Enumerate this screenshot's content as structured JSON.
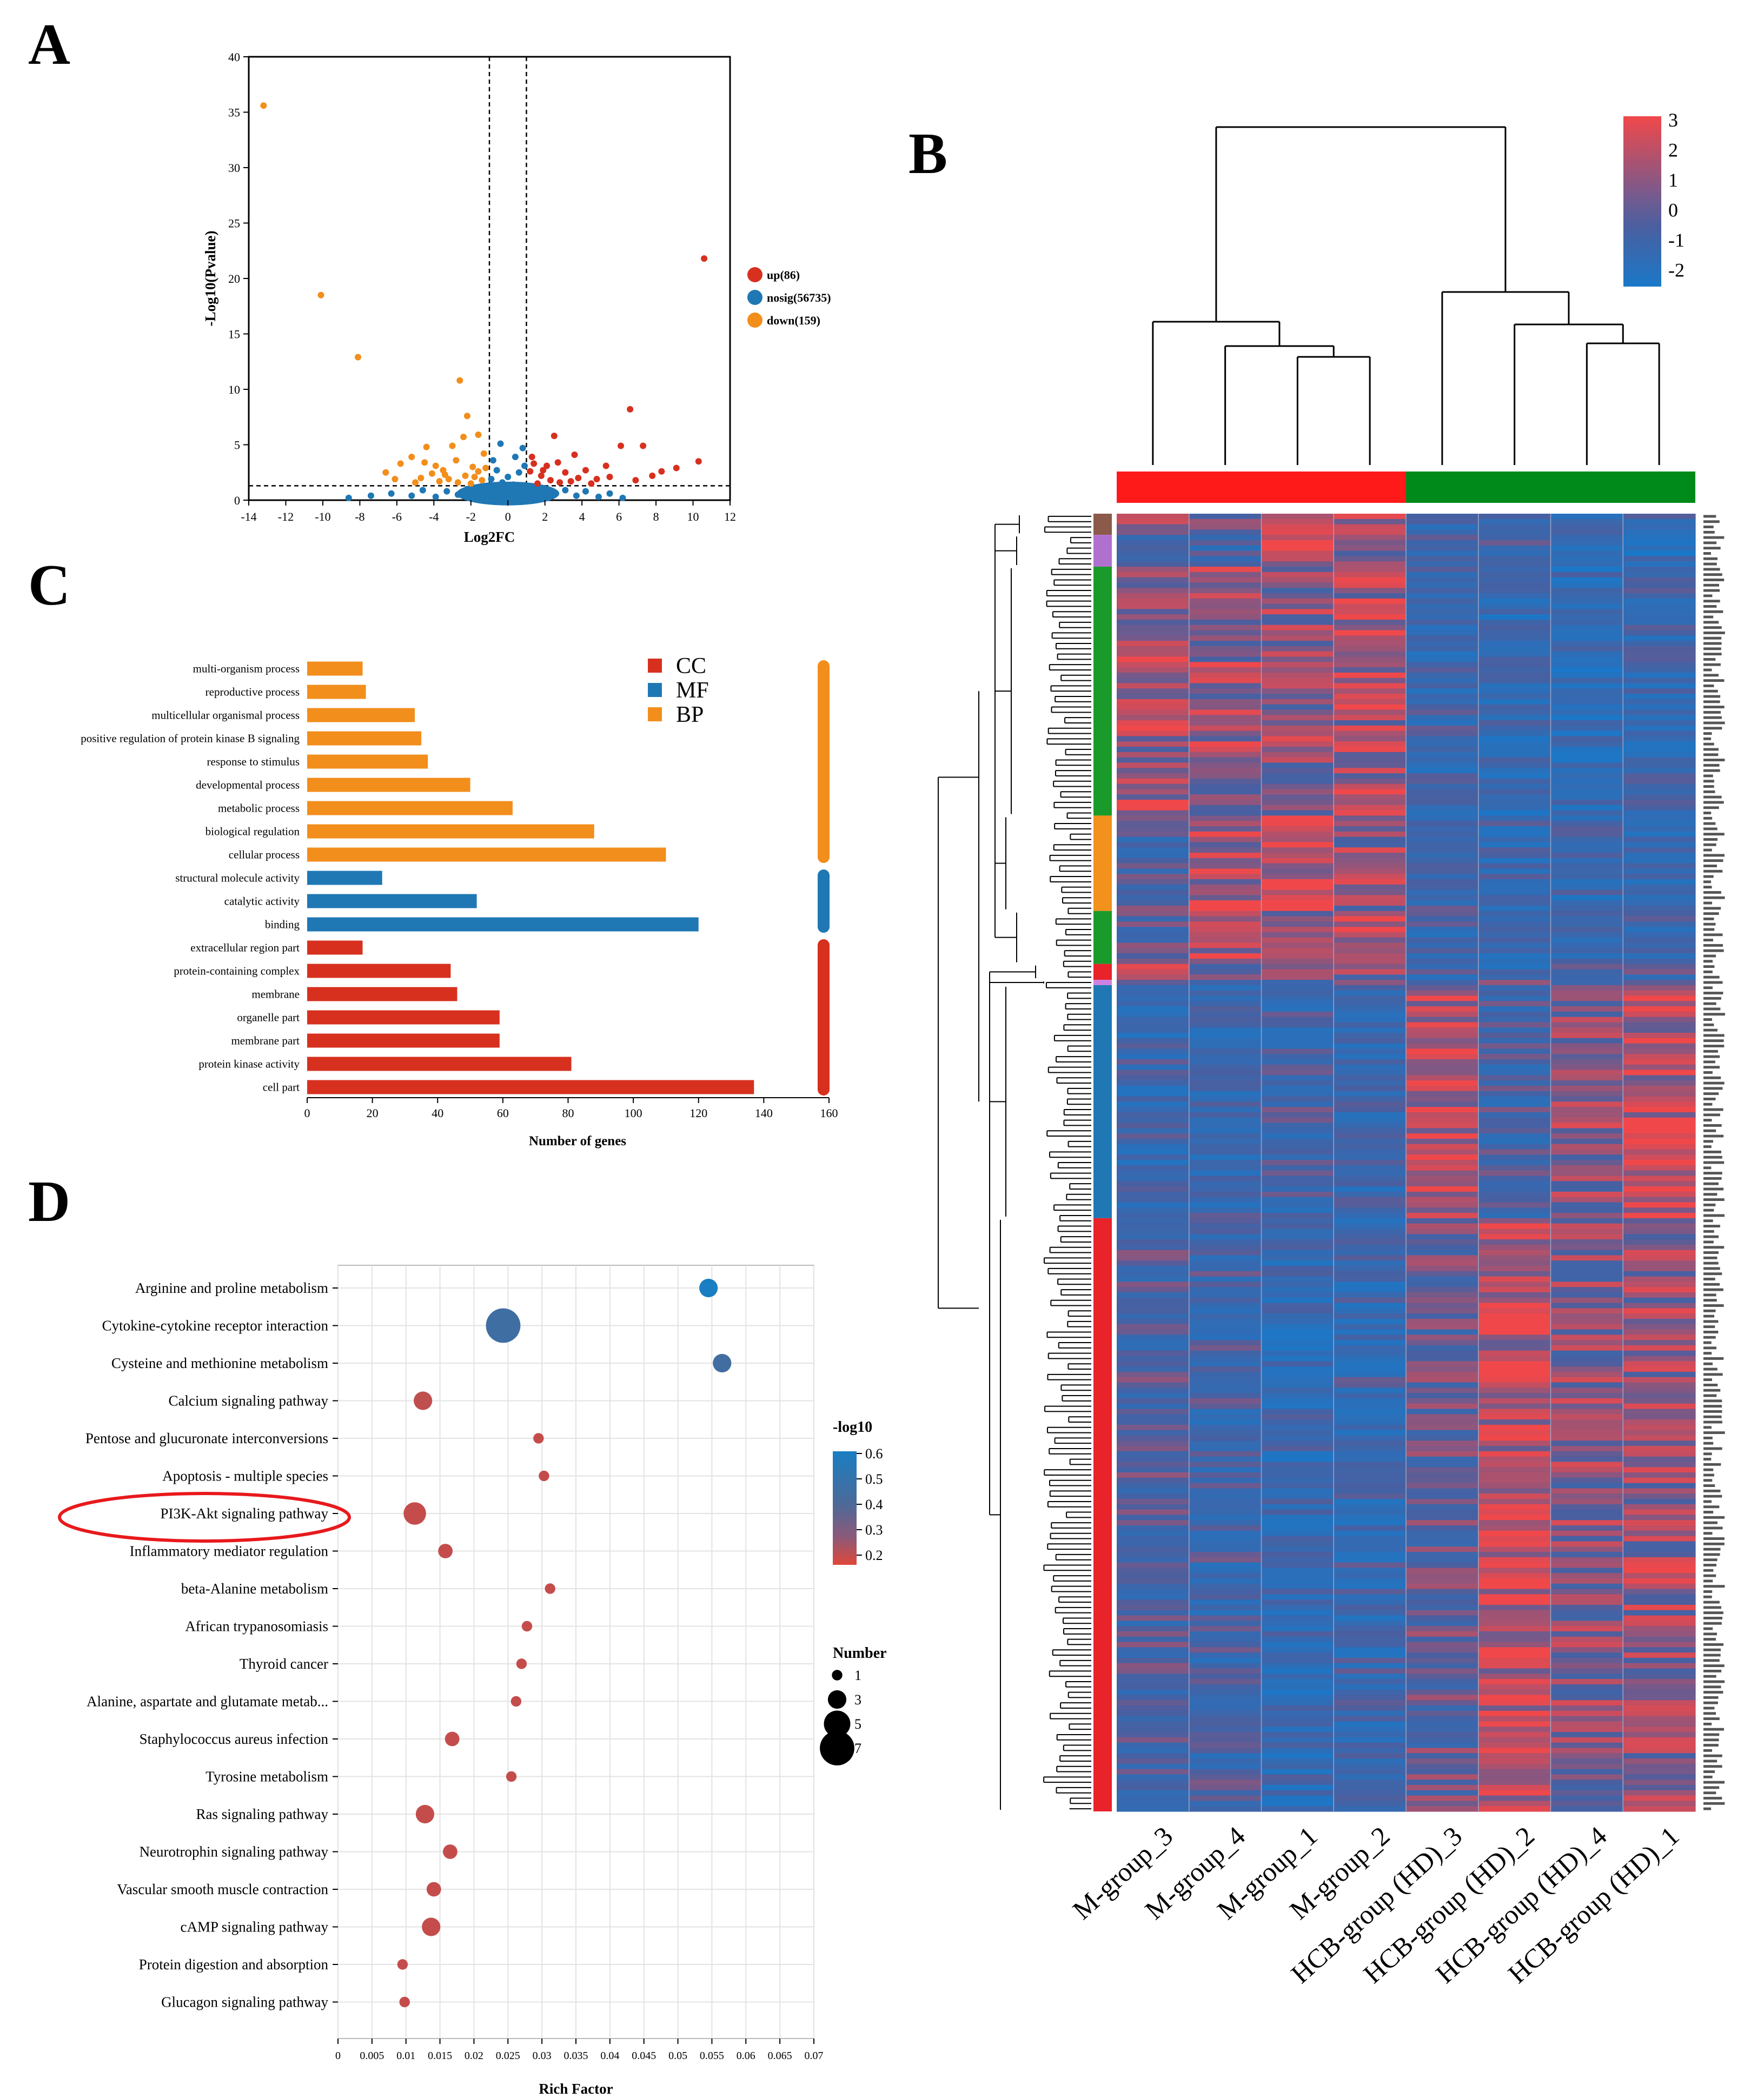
{
  "panels": {
    "A": "A",
    "B": "B",
    "C": "C",
    "D": "D"
  },
  "colors": {
    "up": "#d7301f",
    "nosig": "#1f78b4",
    "down": "#f28e1c",
    "hm_high": "#f0484a",
    "hm_mid": "#4a5fa0",
    "hm_low": "#1a78c8",
    "group1": "#ff1a1a",
    "group2": "#008a1a"
  },
  "chart_data": [
    {
      "type": "scatter",
      "panel": "A",
      "title": "",
      "xlabel": "Log2FC",
      "ylabel": "-Log10(Pvalue)",
      "xlim": [
        -14,
        12
      ],
      "ylim": [
        0,
        40
      ],
      "xticks": [
        -14,
        -12,
        -10,
        -8,
        -6,
        -4,
        -2,
        0,
        2,
        4,
        6,
        8,
        10,
        12
      ],
      "yticks": [
        0,
        5,
        10,
        15,
        20,
        25,
        30,
        35,
        40
      ],
      "thresholds": {
        "x": [
          -1,
          1
        ],
        "y": 1.3
      },
      "legend": [
        "up(86)",
        "nosig(56735)",
        "down(159)"
      ],
      "points": {
        "down": [
          [
            -13.2,
            35.6
          ],
          [
            -10.1,
            18.5
          ],
          [
            -8.1,
            12.9
          ],
          [
            -2.6,
            10.8
          ],
          [
            -2.2,
            7.6
          ],
          [
            -2.4,
            5.7
          ],
          [
            -3.0,
            4.9
          ],
          [
            -1.6,
            5.9
          ],
          [
            -4.4,
            4.8
          ],
          [
            -5.2,
            3.9
          ],
          [
            -5.8,
            3.3
          ],
          [
            -6.6,
            2.5
          ],
          [
            -3.9,
            3.1
          ],
          [
            -2.8,
            3.6
          ],
          [
            -3.5,
            2.7
          ],
          [
            -1.3,
            4.2
          ],
          [
            -1.9,
            3.0
          ],
          [
            -4.7,
            2.0
          ],
          [
            -2.3,
            2.2
          ],
          [
            -1.6,
            2.6
          ],
          [
            -3.2,
            1.9
          ],
          [
            -4.1,
            2.4
          ],
          [
            -1.4,
            1.8
          ],
          [
            -2.7,
            1.6
          ],
          [
            -5.0,
            1.6
          ],
          [
            -1.8,
            2.1
          ],
          [
            -3.7,
            1.7
          ],
          [
            -2.0,
            1.5
          ],
          [
            -1.2,
            2.9
          ],
          [
            -6.1,
            1.9
          ],
          [
            -4.5,
            3.4
          ],
          [
            -3.4,
            2.3
          ]
        ],
        "up": [
          [
            10.6,
            21.8
          ],
          [
            6.6,
            8.2
          ],
          [
            6.1,
            4.9
          ],
          [
            7.3,
            4.9
          ],
          [
            10.3,
            3.5
          ],
          [
            2.5,
            5.8
          ],
          [
            3.6,
            4.1
          ],
          [
            8.3,
            2.6
          ],
          [
            9.1,
            2.9
          ],
          [
            5.3,
            3.1
          ],
          [
            1.3,
            3.9
          ],
          [
            2.1,
            3.1
          ],
          [
            1.8,
            2.2
          ],
          [
            3.1,
            2.5
          ],
          [
            4.2,
            2.7
          ],
          [
            1.2,
            2.6
          ],
          [
            4.8,
            1.9
          ],
          [
            2.8,
            1.6
          ],
          [
            1.6,
            1.5
          ],
          [
            3.8,
            2.0
          ],
          [
            6.9,
            1.8
          ],
          [
            2.3,
            1.8
          ],
          [
            5.5,
            2.1
          ],
          [
            1.4,
            3.3
          ],
          [
            2.7,
            3.4
          ],
          [
            3.4,
            1.7
          ],
          [
            4.5,
            1.5
          ],
          [
            1.9,
            2.7
          ],
          [
            7.8,
            2.2
          ]
        ],
        "nosig": [
          [
            -8.6,
            0.2
          ],
          [
            -6.3,
            0.6
          ],
          [
            -5.2,
            0.4
          ],
          [
            -4.6,
            0.9
          ],
          [
            -3.9,
            0.3
          ],
          [
            -3.3,
            0.8
          ],
          [
            -2.7,
            0.5
          ],
          [
            -2.2,
            1.0
          ],
          [
            -1.7,
            0.4
          ],
          [
            -1.3,
            1.1
          ],
          [
            -0.9,
            1.9
          ],
          [
            -0.6,
            2.7
          ],
          [
            -0.3,
            1.6
          ],
          [
            0.0,
            2.1
          ],
          [
            0.3,
            1.4
          ],
          [
            0.6,
            2.5
          ],
          [
            0.9,
            3.1
          ],
          [
            -0.8,
            3.6
          ],
          [
            0.4,
            3.9
          ],
          [
            1.3,
            0.7
          ],
          [
            1.9,
            1.0
          ],
          [
            2.5,
            0.5
          ],
          [
            3.1,
            0.9
          ],
          [
            3.7,
            0.4
          ],
          [
            4.2,
            0.8
          ],
          [
            4.9,
            0.3
          ],
          [
            5.5,
            0.6
          ],
          [
            6.2,
            0.2
          ],
          [
            -7.4,
            0.4
          ],
          [
            -0.5,
            0.8
          ],
          [
            0.2,
            0.6
          ],
          [
            -0.2,
            1.2
          ],
          [
            0.7,
            1.0
          ],
          [
            -1.0,
            0.6
          ],
          [
            1.1,
            0.3
          ],
          [
            -1.5,
            0.2
          ],
          [
            1.6,
            0.2
          ],
          [
            0.8,
            4.7
          ],
          [
            -0.4,
            5.1
          ]
        ]
      }
    },
    {
      "type": "heatmap",
      "panel": "B",
      "samples": [
        "M-group_3",
        "M-group_4",
        "M-group_1",
        "M-group_2",
        "HCB-group (HD)_3",
        "HCB-group (HD)_2",
        "HCB-group (HD)_4",
        "HCB-group (HD)_1"
      ],
      "groups": [
        {
          "name": "M-group",
          "color": "#ff1a1a",
          "count": 4
        },
        {
          "name": "HCB-group (HD)",
          "color": "#008a1a",
          "count": 4
        }
      ],
      "colorbar": {
        "ticks": [
          3,
          2,
          1,
          0,
          -1,
          -2
        ]
      },
      "n_rows": 245,
      "row_clusters": [
        {
          "color": "#8b5a4a",
          "rows": 4
        },
        {
          "color": "#b070d0",
          "rows": 6
        },
        {
          "color": "#1a9a2a",
          "rows": 47
        },
        {
          "color": "#f2911c",
          "rows": 18
        },
        {
          "color": "#1a9a2a",
          "rows": 10
        },
        {
          "color": "#e8232a",
          "rows": 3
        },
        {
          "color": "#d080e0",
          "rows": 1
        },
        {
          "color": "#1f78b4",
          "rows": 44
        },
        {
          "color": "#e8232a",
          "rows": 112
        }
      ],
      "cluster_values": [
        [
          0.9,
          0.2,
          0.7,
          0.6,
          -0.5,
          -0.4,
          -0.7,
          -0.6
        ],
        [
          -0.2,
          -0.5,
          1.3,
          0.8,
          -0.6,
          -0.3,
          -1.2,
          -0.9
        ],
        [
          0.8,
          0.7,
          0.6,
          0.9,
          -0.6,
          -0.8,
          -0.9,
          -0.7
        ],
        [
          -0.2,
          1.0,
          1.1,
          0.6,
          -0.5,
          -0.6,
          -0.7,
          -0.8
        ],
        [
          -0.1,
          0.9,
          0.3,
          1.2,
          -0.6,
          -0.7,
          -0.5,
          -0.5
        ],
        [
          0.7,
          0.2,
          0.2,
          0.6,
          -0.4,
          -0.6,
          -0.5,
          -0.2
        ],
        [
          0.1,
          0.1,
          0.1,
          0.1,
          0.1,
          0.1,
          0.1,
          0.1
        ],
        [
          -0.6,
          -0.6,
          -0.4,
          -0.5,
          1.1,
          -0.3,
          0.6,
          1.1
        ],
        [
          -0.2,
          -0.4,
          -0.8,
          -0.6,
          0.1,
          1.1,
          0.5,
          0.7
        ]
      ]
    },
    {
      "type": "bar",
      "panel": "C",
      "orientation": "horizontal",
      "xlabel": "Number of genes",
      "xlim": [
        0,
        160
      ],
      "xticks": [
        0,
        20,
        40,
        60,
        80,
        100,
        120,
        140,
        160
      ],
      "legend": [
        {
          "label": "CC",
          "color": "#d7301f"
        },
        {
          "label": "MF",
          "color": "#1f78b4"
        },
        {
          "label": "BP",
          "color": "#f28e1c"
        }
      ],
      "categories": [
        "multi-organism process",
        "reproductive process",
        "multicellular organismal process",
        "positive regulation of protein kinase B signaling",
        "response to stimulus",
        "developmental process",
        "metabolic process",
        "biological regulation",
        "cellular process",
        "structural molecule activity",
        "catalytic activity",
        "binding",
        "extracellular region part",
        "protein-containing complex",
        "membrane",
        "organelle part",
        "membrane part",
        "protein kinase activity",
        "cell part"
      ],
      "values": [
        17,
        18,
        33,
        35,
        37,
        50,
        63,
        88,
        110,
        23,
        52,
        120,
        17,
        44,
        46,
        59,
        59,
        81,
        137
      ],
      "category_groups": [
        "BP",
        "BP",
        "BP",
        "BP",
        "BP",
        "BP",
        "BP",
        "BP",
        "BP",
        "MF",
        "MF",
        "MF",
        "CC",
        "CC",
        "CC",
        "CC",
        "CC",
        "CC",
        "CC"
      ]
    },
    {
      "type": "scatter",
      "panel": "D",
      "subtype": "bubble",
      "xlabel": "Rich Factor",
      "xlim": [
        0,
        0.07
      ],
      "xticks": [
        "0",
        "0.005",
        "0.01",
        "0.015",
        "0.02",
        "0.025",
        "0.03",
        "0.035",
        "0.04",
        "0.045",
        "0.05",
        "0.055",
        "0.06",
        "0.065",
        "0.07"
      ],
      "color_legend": {
        "title": "-log10",
        "ticks": [
          "0.6",
          "0.5",
          "0.4",
          "0.3",
          "0.2"
        ],
        "range": [
          0.15,
          0.6
        ]
      },
      "size_legend": {
        "title": "Number",
        "values": [
          "1",
          "3",
          "5",
          "7"
        ]
      },
      "highlight": "PI3K-Akt signaling pathway",
      "pathways": [
        {
          "name": "Arginine and proline metabolism",
          "rich": 0.0545,
          "number": 3,
          "neglog10": 0.6
        },
        {
          "name": "Cytokine-cytokine receptor interaction",
          "rich": 0.0243,
          "number": 7,
          "neglog10": 0.46
        },
        {
          "name": "Cysteine and methionine metabolism",
          "rich": 0.0565,
          "number": 3,
          "neglog10": 0.45
        },
        {
          "name": "Calcium signaling pathway",
          "rich": 0.0125,
          "number": 3,
          "neglog10": 0.21
        },
        {
          "name": "Pentose and glucuronate interconversions",
          "rich": 0.0295,
          "number": 1,
          "neglog10": 0.2
        },
        {
          "name": "Apoptosis - multiple species",
          "rich": 0.0303,
          "number": 1,
          "neglog10": 0.2
        },
        {
          "name": "PI3K-Akt signaling pathway",
          "rich": 0.0113,
          "number": 4,
          "neglog10": 0.2
        },
        {
          "name": "Inflammatory mediator regulation",
          "rich": 0.0158,
          "number": 2,
          "neglog10": 0.2
        },
        {
          "name": "beta-Alanine metabolism",
          "rich": 0.0312,
          "number": 1,
          "neglog10": 0.2
        },
        {
          "name": "African trypanosomiasis",
          "rich": 0.0278,
          "number": 1,
          "neglog10": 0.2
        },
        {
          "name": "Thyroid cancer",
          "rich": 0.027,
          "number": 1,
          "neglog10": 0.2
        },
        {
          "name": "Alanine, aspartate and glutamate metab...",
          "rich": 0.0262,
          "number": 1,
          "neglog10": 0.2
        },
        {
          "name": "Staphylococcus aureus infection",
          "rich": 0.0168,
          "number": 2,
          "neglog10": 0.2
        },
        {
          "name": "Tyrosine metabolism",
          "rich": 0.0255,
          "number": 1,
          "neglog10": 0.2
        },
        {
          "name": "Ras signaling pathway",
          "rich": 0.0128,
          "number": 3,
          "neglog10": 0.2
        },
        {
          "name": "Neurotrophin signaling pathway",
          "rich": 0.0165,
          "number": 2,
          "neglog10": 0.2
        },
        {
          "name": "Vascular smooth muscle contraction",
          "rich": 0.0141,
          "number": 2,
          "neglog10": 0.2
        },
        {
          "name": "cAMP signaling pathway",
          "rich": 0.0137,
          "number": 3,
          "neglog10": 0.2
        },
        {
          "name": "Protein digestion and absorption",
          "rich": 0.0095,
          "number": 1,
          "neglog10": 0.2
        },
        {
          "name": "Glucagon signaling pathway",
          "rich": 0.0098,
          "number": 1,
          "neglog10": 0.2
        }
      ]
    }
  ]
}
